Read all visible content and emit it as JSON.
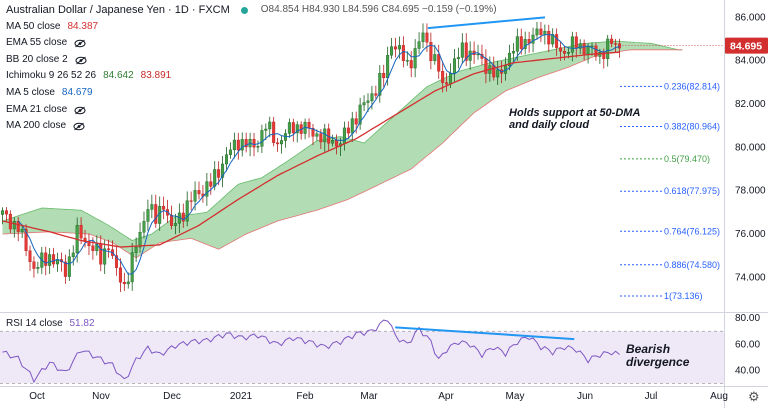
{
  "header": {
    "title": "Australian Dollar / Japanese Yen · 1D · FXCM",
    "ohlc": "O84.854 H84.930 L84.596 C84.695 −0.159 (−0.19%)"
  },
  "indicators": [
    {
      "name": "MA 50 close",
      "value": "84.387",
      "color": "#d32f2f",
      "hidden": false
    },
    {
      "name": "EMA 55 close",
      "value": "",
      "color": "#131722",
      "hidden": true
    },
    {
      "name": "BB 20 close 2",
      "value": "",
      "color": "#131722",
      "hidden": true
    },
    {
      "name": "Ichimoku 9 26 52 26",
      "value": "84.642",
      "value2": "83.891",
      "color": "#2e7d32",
      "color2": "#c62828",
      "hidden": false
    },
    {
      "name": "MA 5 close",
      "value": "84.679",
      "color": "#1565c0",
      "hidden": false
    },
    {
      "name": "EMA 21 close",
      "value": "",
      "color": "#131722",
      "hidden": true
    },
    {
      "name": "MA 200 close",
      "value": "",
      "color": "#131722",
      "hidden": true
    }
  ],
  "rsi": {
    "label": "RSI 14 close",
    "value": "51.82",
    "color": "#7e57c2",
    "band_upper": 70,
    "band_lower": 30
  },
  "price_badge": {
    "value": "84.695",
    "color": "#d32f2f"
  },
  "annotations": {
    "support": [
      "Holds support at 50-DMA",
      "and daily cloud"
    ],
    "divergence": [
      "Bearish",
      "divergence"
    ]
  },
  "fib_levels": [
    {
      "label": "0.236(82.814)",
      "price": 82.814,
      "color": "#2962ff"
    },
    {
      "label": "0.382(80.964)",
      "price": 80.964,
      "color": "#2962ff"
    },
    {
      "label": "0.5(79.470)",
      "price": 79.47,
      "color": "#43a047"
    },
    {
      "label": "0.618(77.975)",
      "price": 77.975,
      "color": "#2962ff"
    },
    {
      "label": "0.764(76.125)",
      "price": 76.125,
      "color": "#2962ff"
    },
    {
      "label": "0.886(74.580)",
      "price": 74.58,
      "color": "#2962ff"
    },
    {
      "label": "1(73.136)",
      "price": 73.136,
      "color": "#2962ff"
    }
  ],
  "chart_data": {
    "type": "candlestick",
    "title": "Australian Dollar / Japanese Yen · 1D · FXCM",
    "x_ticks": [
      "Oct",
      "Nov",
      "Dec",
      "2021",
      "Feb",
      "Mar",
      "Apr",
      "May",
      "Jun",
      "Jul",
      "Aug"
    ],
    "y_ticks": [
      "74.000",
      "76.000",
      "78.000",
      "80.000",
      "82.000",
      "84.000",
      "86.000"
    ],
    "ylim": [
      72.4,
      86.8
    ],
    "rsi_ticks": [
      "40.00",
      "60.00",
      "80.00"
    ],
    "rsi_ylim": [
      28,
      84
    ],
    "price_anchors": [
      [
        0,
        76.9
      ],
      [
        4,
        76.3
      ],
      [
        8,
        74.4
      ],
      [
        12,
        75.0
      ],
      [
        16,
        74.3
      ],
      [
        19,
        76.0
      ],
      [
        23,
        75.4
      ],
      [
        25,
        74.8
      ],
      [
        27,
        75.6
      ],
      [
        29,
        74.2
      ],
      [
        31,
        73.6
      ],
      [
        33,
        74.8
      ],
      [
        35,
        76.0
      ],
      [
        37,
        77.4
      ],
      [
        39,
        76.6
      ],
      [
        41,
        77.5
      ],
      [
        43,
        76.2
      ],
      [
        45,
        76.8
      ],
      [
        49,
        77.8
      ],
      [
        53,
        78.3
      ],
      [
        57,
        79.6
      ],
      [
        60,
        80.3
      ],
      [
        64,
        80.0
      ],
      [
        67,
        81.0
      ],
      [
        70,
        80.2
      ],
      [
        74,
        81.0
      ],
      [
        78,
        80.8
      ],
      [
        82,
        80.4
      ],
      [
        86,
        80.2
      ],
      [
        89,
        81.2
      ],
      [
        93,
        82.2
      ],
      [
        97,
        83.3
      ],
      [
        99,
        84.9
      ],
      [
        101,
        84.4
      ],
      [
        103,
        83.8
      ],
      [
        105,
        84.4
      ],
      [
        107,
        85.2
      ],
      [
        109,
        84.4
      ],
      [
        111,
        83.6
      ],
      [
        112,
        82.7
      ],
      [
        114,
        83.6
      ],
      [
        117,
        84.5
      ],
      [
        120,
        84.3
      ],
      [
        123,
        83.8
      ],
      [
        126,
        83.2
      ],
      [
        129,
        84.3
      ],
      [
        132,
        84.9
      ],
      [
        135,
        85.0
      ],
      [
        137,
        85.5
      ],
      [
        140,
        84.8
      ],
      [
        143,
        84.4
      ],
      [
        146,
        84.8
      ],
      [
        149,
        84.5
      ],
      [
        152,
        84.3
      ],
      [
        155,
        84.8
      ],
      [
        157,
        84.7
      ]
    ],
    "ma50_anchors": [
      [
        0,
        76.6
      ],
      [
        12,
        76.1
      ],
      [
        20,
        75.7
      ],
      [
        30,
        75.4
      ],
      [
        40,
        75.5
      ],
      [
        50,
        76.4
      ],
      [
        60,
        77.6
      ],
      [
        70,
        78.7
      ],
      [
        80,
        79.6
      ],
      [
        90,
        80.4
      ],
      [
        100,
        81.5
      ],
      [
        110,
        82.6
      ],
      [
        120,
        83.4
      ],
      [
        130,
        83.9
      ],
      [
        140,
        84.1
      ],
      [
        150,
        84.3
      ],
      [
        157,
        84.39
      ]
    ],
    "span_a_anchors": [
      [
        0,
        76.6
      ],
      [
        10,
        77.2
      ],
      [
        20,
        77.1
      ],
      [
        27,
        76.4
      ],
      [
        33,
        75.7
      ],
      [
        38,
        76.0
      ],
      [
        44,
        76.8
      ],
      [
        52,
        77.0
      ],
      [
        60,
        78.3
      ],
      [
        66,
        78.6
      ],
      [
        72,
        79.3
      ],
      [
        80,
        80.3
      ],
      [
        86,
        80.5
      ],
      [
        92,
        80.2
      ],
      [
        100,
        81.5
      ],
      [
        108,
        82.8
      ],
      [
        116,
        83.5
      ],
      [
        124,
        83.9
      ],
      [
        132,
        84.2
      ],
      [
        140,
        84.5
      ],
      [
        148,
        84.8
      ],
      [
        156,
        84.9
      ],
      [
        165,
        84.8
      ],
      [
        172,
        84.5
      ]
    ],
    "span_b_anchors": [
      [
        0,
        76.0
      ],
      [
        12,
        76.1
      ],
      [
        22,
        76.0
      ],
      [
        28,
        75.6
      ],
      [
        34,
        74.9
      ],
      [
        40,
        75.6
      ],
      [
        48,
        75.8
      ],
      [
        55,
        75.3
      ],
      [
        62,
        76.0
      ],
      [
        70,
        76.6
      ],
      [
        80,
        77.1
      ],
      [
        88,
        77.6
      ],
      [
        96,
        78.3
      ],
      [
        104,
        79.0
      ],
      [
        112,
        80.2
      ],
      [
        120,
        81.6
      ],
      [
        128,
        82.6
      ],
      [
        136,
        83.2
      ],
      [
        144,
        83.7
      ],
      [
        152,
        84.3
      ],
      [
        160,
        84.5
      ],
      [
        172,
        84.5
      ]
    ],
    "rsi_anchors": [
      [
        0,
        54
      ],
      [
        4,
        49
      ],
      [
        8,
        33
      ],
      [
        12,
        46
      ],
      [
        16,
        38
      ],
      [
        20,
        56
      ],
      [
        24,
        50
      ],
      [
        28,
        44
      ],
      [
        31,
        32
      ],
      [
        34,
        48
      ],
      [
        37,
        57
      ],
      [
        40,
        52
      ],
      [
        44,
        59
      ],
      [
        48,
        62
      ],
      [
        52,
        63
      ],
      [
        57,
        68
      ],
      [
        61,
        65
      ],
      [
        65,
        67
      ],
      [
        70,
        60
      ],
      [
        74,
        65
      ],
      [
        78,
        62
      ],
      [
        82,
        58
      ],
      [
        86,
        62
      ],
      [
        90,
        68
      ],
      [
        94,
        70
      ],
      [
        98,
        80
      ],
      [
        100,
        66
      ],
      [
        103,
        60
      ],
      [
        106,
        72
      ],
      [
        109,
        62
      ],
      [
        111,
        48
      ],
      [
        113,
        56
      ],
      [
        116,
        62
      ],
      [
        119,
        60
      ],
      [
        122,
        52
      ],
      [
        125,
        58
      ],
      [
        128,
        53
      ],
      [
        131,
        62
      ],
      [
        134,
        66
      ],
      [
        137,
        58
      ],
      [
        140,
        54
      ],
      [
        143,
        58
      ],
      [
        146,
        56
      ],
      [
        149,
        48
      ],
      [
        152,
        52
      ],
      [
        155,
        54
      ],
      [
        157,
        51.8
      ]
    ],
    "trendlines": {
      "price_highs": [
        [
          110,
          85.5
        ],
        [
          136,
          86.0
        ]
      ],
      "rsi_highs": [
        [
          105,
          73
        ],
        [
          146,
          64
        ]
      ]
    }
  }
}
